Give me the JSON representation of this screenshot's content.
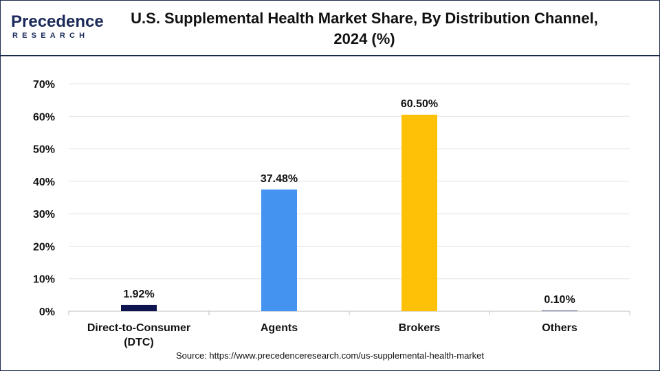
{
  "header": {
    "title": "U.S. Supplemental Health Market Share, By Distribution Channel, 2024 (%)",
    "logo_main": "Precedence",
    "logo_sub": "RESEARCH"
  },
  "source": "Source: https://www.precedenceresearch.com/us-supplemental-health-market",
  "chart_data": {
    "type": "bar",
    "title": "U.S. Supplemental Health Market Share, By Distribution Channel, 2024 (%)",
    "categories": [
      "Direct-to-Consumer (DTC)",
      "Agents",
      "Brokers",
      "Others"
    ],
    "values": [
      1.92,
      37.48,
      60.5,
      0.1
    ],
    "data_labels": [
      "1.92%",
      "37.48%",
      "60.50%",
      "0.10%"
    ],
    "colors": [
      "#0d1450",
      "#4493f0",
      "#ffc107",
      "#0d1450"
    ],
    "ylim": [
      0,
      70
    ],
    "yticks": [
      0,
      10,
      20,
      30,
      40,
      50,
      60,
      70
    ],
    "ytick_labels": [
      "0%",
      "10%",
      "20%",
      "30%",
      "40%",
      "50%",
      "60%",
      "70%"
    ],
    "xlabel": "",
    "ylabel": "",
    "grid": true,
    "legend": "none"
  }
}
